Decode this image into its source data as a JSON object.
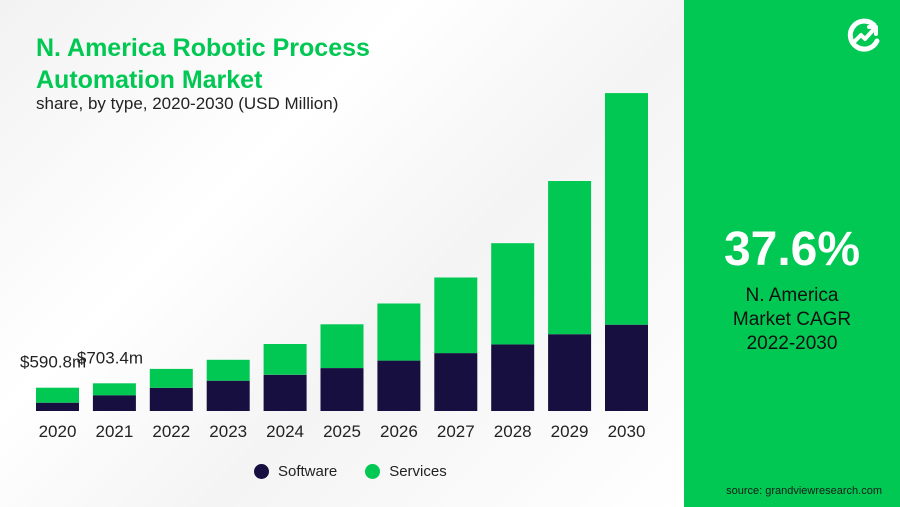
{
  "header": {
    "title": "N. America Robotic Process Automation Market",
    "subtitle": "share, by type, 2020-2030 (USD Million)"
  },
  "chart_data": {
    "type": "bar",
    "stacked": true,
    "categories": [
      "2020",
      "2021",
      "2022",
      "2023",
      "2024",
      "2025",
      "2026",
      "2027",
      "2028",
      "2029",
      "2030"
    ],
    "series": [
      {
        "name": "Software",
        "color": "#170f40",
        "values": [
          210,
          400,
          590,
          770,
          920,
          1090,
          1280,
          1470,
          1690,
          1950,
          2190
        ]
      },
      {
        "name": "Services",
        "color": "#00c853",
        "values": [
          380.8,
          303.4,
          480,
          530,
          780,
          1110,
          1450,
          1920,
          2570,
          3890,
          5880
        ]
      }
    ],
    "annotations": [
      {
        "category": "2020",
        "text": "$590.8m"
      },
      {
        "category": "2021",
        "text": "$703.4m"
      }
    ],
    "ylim": [
      0,
      8200
    ],
    "grid": false,
    "legend_position": "bottom-center"
  },
  "legend": {
    "items": [
      {
        "label": "Software",
        "color": "#170f40"
      },
      {
        "label": "Services",
        "color": "#00c853"
      }
    ]
  },
  "panel": {
    "logo_icon": "grand-view-research-logo-icon",
    "cagr_value": "37.6%",
    "cagr_label_lines": [
      "N. America",
      "Market CAGR",
      "2022-2030"
    ]
  },
  "footer": {
    "source": "source: grandviewresearch.com"
  }
}
